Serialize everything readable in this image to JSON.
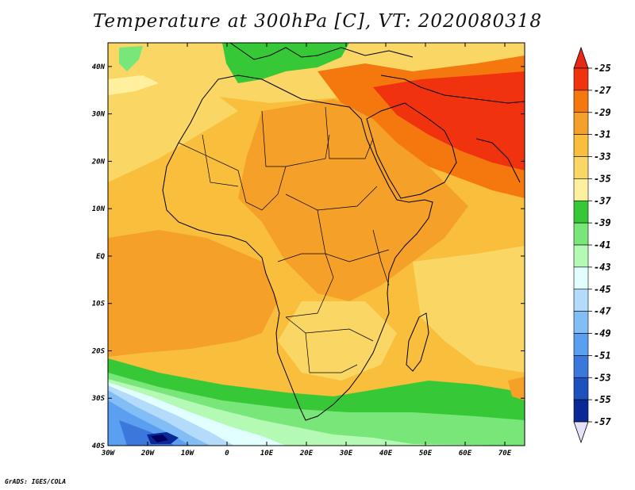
{
  "title": "Temperature at 300hPa [C], VT: 2020080318",
  "credit": "GrADS: IGES/COLA",
  "map": {
    "lon_range": [
      -30,
      75
    ],
    "lat_range": [
      -40,
      45
    ],
    "lon_ticks": [
      {
        "value": -30,
        "label": "30W"
      },
      {
        "value": -20,
        "label": "20W"
      },
      {
        "value": -10,
        "label": "10W"
      },
      {
        "value": 0,
        "label": "0"
      },
      {
        "value": 10,
        "label": "10E"
      },
      {
        "value": 20,
        "label": "20E"
      },
      {
        "value": 30,
        "label": "30E"
      },
      {
        "value": 40,
        "label": "40E"
      },
      {
        "value": 50,
        "label": "50E"
      },
      {
        "value": 60,
        "label": "60E"
      },
      {
        "value": 70,
        "label": "70E"
      }
    ],
    "lat_ticks": [
      {
        "value": 40,
        "label": "40N"
      },
      {
        "value": 30,
        "label": "30N"
      },
      {
        "value": 20,
        "label": "20N"
      },
      {
        "value": 10,
        "label": "10N"
      },
      {
        "value": 0,
        "label": "EQ"
      },
      {
        "value": -10,
        "label": "10S"
      },
      {
        "value": -20,
        "label": "20S"
      },
      {
        "value": -30,
        "label": "30S"
      },
      {
        "value": -40,
        "label": "40S"
      }
    ]
  },
  "colorbar": {
    "labels": [
      "-25",
      "-27",
      "-29",
      "-31",
      "-33",
      "-35",
      "-37",
      "-39",
      "-41",
      "-43",
      "-45",
      "-47",
      "-49",
      "-51",
      "-53",
      "-55",
      "-57"
    ],
    "colors": [
      "#f0320f",
      "#f5780f",
      "#f5a028",
      "#f8be3c",
      "#fad764",
      "#fff0a0",
      "#37c837",
      "#78e678",
      "#b4fab4",
      "#e1ffff",
      "#b4dcfa",
      "#82bef5",
      "#5a9ff0",
      "#3c78dc",
      "#1e50be",
      "#0a2896",
      "#000064"
    ],
    "low_end_color": "#e6e1fa",
    "high_end_color": "#e62814"
  }
}
